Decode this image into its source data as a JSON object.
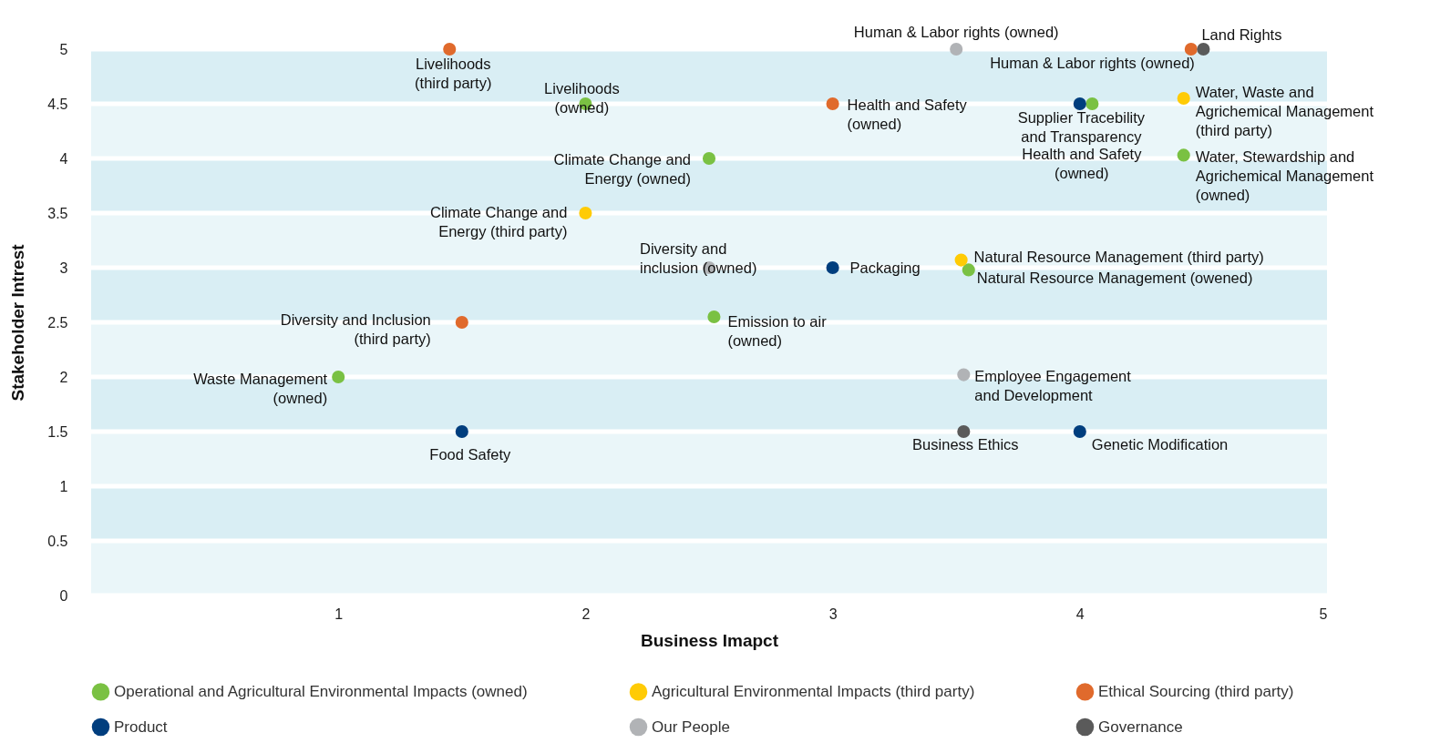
{
  "chart_data": {
    "type": "scatter",
    "xlabel": "Business Imapct",
    "ylabel": "Stakeholder Intrest",
    "xlim": [
      0,
      5
    ],
    "ylim": [
      0,
      5
    ],
    "xticks": [
      1,
      2,
      3,
      4,
      5
    ],
    "yticks": [
      0,
      0.5,
      1,
      1.5,
      2,
      2.5,
      3,
      3.5,
      4,
      4.5,
      5
    ],
    "grid": "y",
    "legend": "bottom",
    "marker": "circle",
    "bands": [
      {
        "axis": "y",
        "from": 0,
        "to": 0.5,
        "color": "#eaf6f9"
      },
      {
        "axis": "y",
        "from": 0.5,
        "to": 1,
        "color": "#d9eef4"
      },
      {
        "axis": "y",
        "from": 1,
        "to": 1.5,
        "color": "#eaf6f9"
      },
      {
        "axis": "y",
        "from": 1.5,
        "to": 2,
        "color": "#d9eef4"
      },
      {
        "axis": "y",
        "from": 2,
        "to": 2.5,
        "color": "#eaf6f9"
      },
      {
        "axis": "y",
        "from": 2.5,
        "to": 3,
        "color": "#d9eef4"
      },
      {
        "axis": "y",
        "from": 3,
        "to": 3.5,
        "color": "#eaf6f9"
      },
      {
        "axis": "y",
        "from": 3.5,
        "to": 4,
        "color": "#d9eef4"
      },
      {
        "axis": "y",
        "from": 4,
        "to": 4.5,
        "color": "#eaf6f9"
      },
      {
        "axis": "y",
        "from": 4.5,
        "to": 5,
        "color": "#d9eef4"
      }
    ],
    "series": [
      {
        "name": "Operational and Agricultural Environmental Impacts (owned)",
        "color": "#7ac143",
        "x": [
          2,
          2.5,
          4.05,
          4.42,
          3.55,
          2.52,
          1
        ],
        "values": [
          4.5,
          4,
          4.5,
          4.03,
          2.98,
          2.55,
          2
        ]
      },
      {
        "name": "Agricultural Environmental Impacts (third party)",
        "color": "#ffcb05",
        "x": [
          2,
          4.42,
          3.52
        ],
        "values": [
          3.5,
          4.55,
          3.07
        ]
      },
      {
        "name": "Ethical Sourcing (third party)",
        "color": "#e06a2c",
        "x": [
          1.45,
          3,
          4.45,
          1.5
        ],
        "values": [
          5,
          4.5,
          5,
          2.5
        ]
      },
      {
        "name": "Product",
        "color": "#003e7e",
        "x": [
          4,
          3,
          1.5,
          4
        ],
        "values": [
          4.5,
          3,
          1.5,
          1.5
        ]
      },
      {
        "name": "Our People",
        "color": "#b1b3b6",
        "x": [
          3.5,
          2.5,
          3.53
        ],
        "values": [
          5,
          3,
          2.02
        ]
      },
      {
        "name": "Governance",
        "color": "#5a5a5a",
        "x": [
          4.5,
          3.53
        ],
        "values": [
          5,
          1.5
        ]
      }
    ],
    "annotations": [
      {
        "text": "Livelihoods\n(third party)",
        "x": 1.45,
        "y": 5
      },
      {
        "text": "Livelihoods\n(owned)",
        "x": 2,
        "y": 4.5
      },
      {
        "text": "Human & Labor rights (owned)",
        "x": 3.5,
        "y": 5
      },
      {
        "text": "Human & Labor rights (owned)",
        "x": 4.45,
        "y": 5
      },
      {
        "text": "Land Rights",
        "x": 4.5,
        "y": 5
      },
      {
        "text": "Health and Safety\n(owned)",
        "x": 3,
        "y": 4.5
      },
      {
        "text": "Supplier Tracebility\nand Transparency",
        "x": 4.05,
        "y": 4.5
      },
      {
        "text": "Health and Safety\n(owned)",
        "x": 4,
        "y": 4.5
      },
      {
        "text": "Water, Waste and\nAgrichemical Management\n(third party)",
        "x": 4.42,
        "y": 4.55
      },
      {
        "text": "Water, Stewardship and\nAgrichemical Management\n(owned)",
        "x": 4.42,
        "y": 4.03
      },
      {
        "text": "Climate Change and\nEnergy (owned)",
        "x": 2.5,
        "y": 4
      },
      {
        "text": "Climate Change and\nEnergy (third party)",
        "x": 2,
        "y": 3.5
      },
      {
        "text": "Diversity and\ninclusion (owned)",
        "x": 2.5,
        "y": 3
      },
      {
        "text": "Packaging",
        "x": 3,
        "y": 3
      },
      {
        "text": "Natural Resource Management (third party)",
        "x": 3.52,
        "y": 3.07
      },
      {
        "text": "Natural Resource Management (owened)",
        "x": 3.55,
        "y": 2.98
      },
      {
        "text": "Diversity and Inclusion\n(third party)",
        "x": 1.5,
        "y": 2.5
      },
      {
        "text": "Emission to air\n(owned)",
        "x": 2.52,
        "y": 2.55
      },
      {
        "text": "Waste Management\n(owned)",
        "x": 1,
        "y": 2
      },
      {
        "text": "Employee Engagement\nand Development",
        "x": 3.53,
        "y": 2.02
      },
      {
        "text": "Food Safety",
        "x": 1.5,
        "y": 1.5
      },
      {
        "text": "Business Ethics",
        "x": 3.53,
        "y": 1.5
      },
      {
        "text": "Genetic Modification",
        "x": 4,
        "y": 1.5
      }
    ]
  }
}
